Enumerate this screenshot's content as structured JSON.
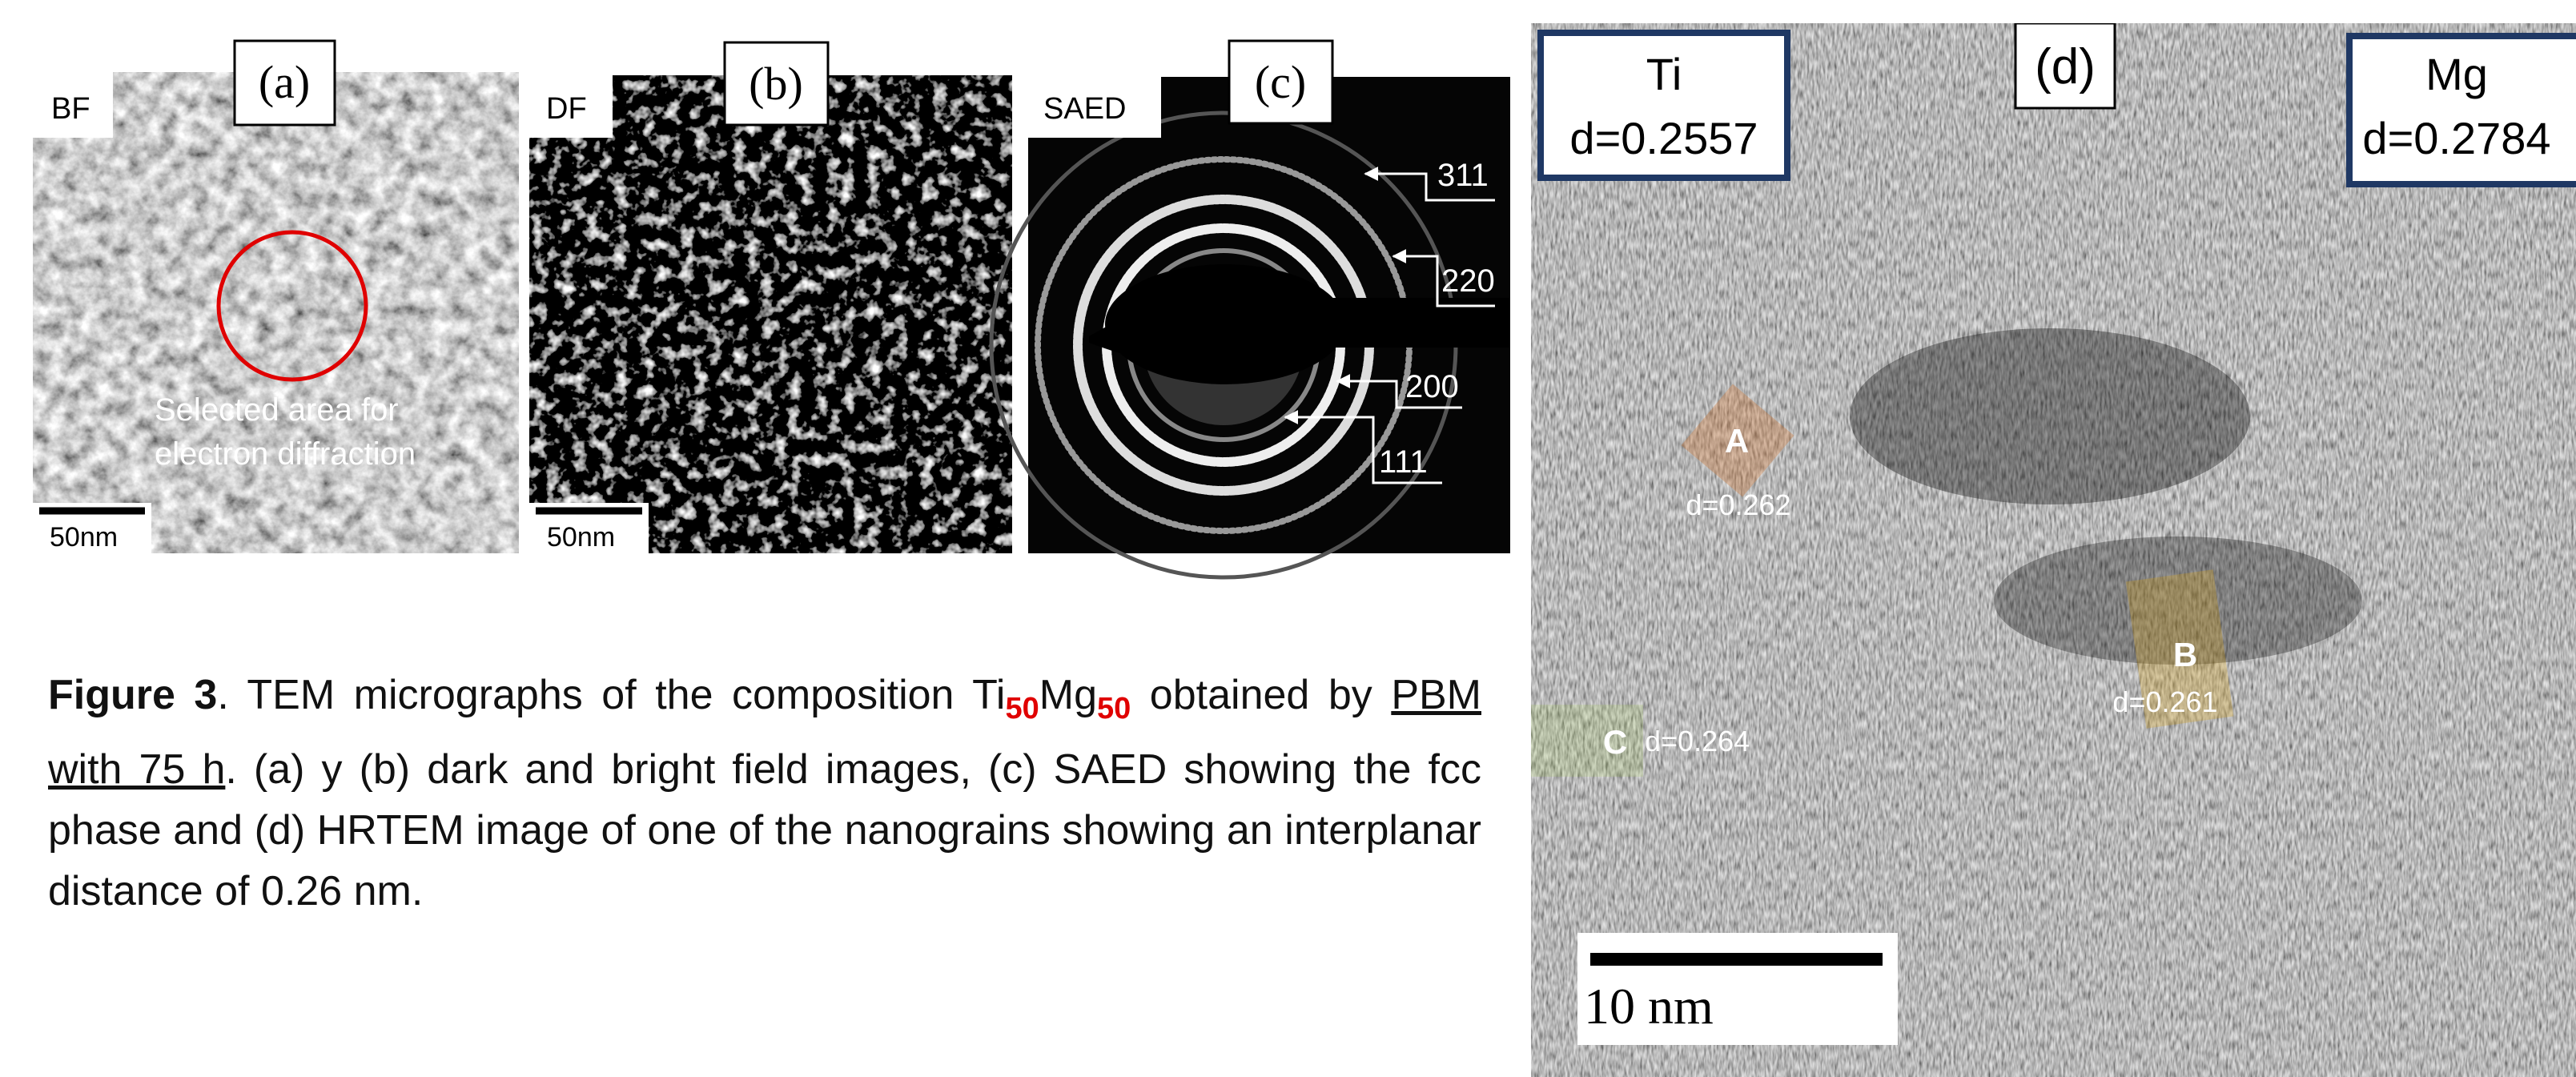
{
  "panels": [
    {
      "label": "(a)",
      "tag": "BF",
      "scale": "50nm",
      "annotation": [
        "Selected area for",
        "electron diffraction"
      ]
    },
    {
      "label": "(b)",
      "tag": "DF",
      "scale": "50nm"
    },
    {
      "label": "(c)",
      "tag": "SAED",
      "rings": [
        "311",
        "220",
        "200",
        "111"
      ]
    },
    {
      "label": "(d)",
      "phases": [
        {
          "element": "Ti",
          "d": "d=0.2557"
        },
        {
          "element": "Mg",
          "d": "d=0.2784"
        }
      ],
      "regions": [
        {
          "name": "A",
          "d": "d=0.262"
        },
        {
          "name": "B",
          "d": "d=0.261"
        },
        {
          "name": "C",
          "d": "d=0.264"
        }
      ],
      "scale": "10 nm"
    }
  ],
  "caption": {
    "label": "Figure 3",
    "text1": ". TEM micrographs of the composition Ti",
    "sub1": "50",
    "text2": "Mg",
    "sub2": "50",
    "text3": " obtained by ",
    "underlined": "PBM with 75 h",
    "text4": ". (a) y (b) dark and bright field images, (c) SAED showing the fcc phase and (d) HRTEM image of one of the nanograins showing an interplanar distance of 0.26 nm."
  }
}
